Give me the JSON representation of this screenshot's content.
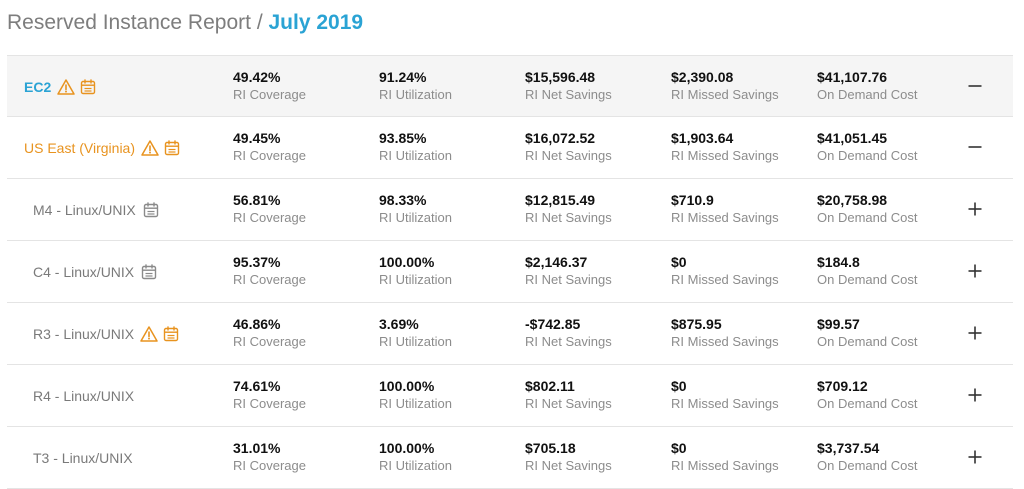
{
  "header": {
    "title": "Reserved Instance Report",
    "separator": "/",
    "period": "July 2019"
  },
  "colors": {
    "accent_blue": "#2aa3d4",
    "warning_orange": "#e8931f",
    "muted_gray": "#7a7a7a"
  },
  "metric_labels": {
    "coverage": "RI Coverage",
    "utilization": "RI Utilization",
    "net_savings": "RI Net Savings",
    "missed_savings": "RI Missed Savings",
    "on_demand_cost": "On Demand Cost"
  },
  "rows": [
    {
      "name": "EC2",
      "level": 0,
      "warning_icon": true,
      "calendar_icon": true,
      "coverage": "49.42%",
      "utilization": "91.24%",
      "net_savings": "$15,596.48",
      "missed_savings": "$2,390.08",
      "on_demand_cost": "$41,107.76",
      "toggle": "collapse"
    },
    {
      "name": "US East (Virginia)",
      "level": 1,
      "warning_icon": true,
      "calendar_icon": true,
      "coverage": "49.45%",
      "utilization": "93.85%",
      "net_savings": "$16,072.52",
      "missed_savings": "$1,903.64",
      "on_demand_cost": "$41,051.45",
      "toggle": "collapse"
    },
    {
      "name": "M4 - Linux/UNIX",
      "level": 2,
      "warning_icon": false,
      "calendar_icon": true,
      "coverage": "56.81%",
      "utilization": "98.33%",
      "net_savings": "$12,815.49",
      "missed_savings": "$710.9",
      "on_demand_cost": "$20,758.98",
      "toggle": "expand"
    },
    {
      "name": "C4 - Linux/UNIX",
      "level": 2,
      "warning_icon": false,
      "calendar_icon": true,
      "coverage": "95.37%",
      "utilization": "100.00%",
      "net_savings": "$2,146.37",
      "missed_savings": "$0",
      "on_demand_cost": "$184.8",
      "toggle": "expand"
    },
    {
      "name": "R3 - Linux/UNIX",
      "level": 2,
      "warning_icon": true,
      "calendar_icon": true,
      "coverage": "46.86%",
      "utilization": "3.69%",
      "net_savings": "-$742.85",
      "missed_savings": "$875.95",
      "on_demand_cost": "$99.57",
      "toggle": "expand"
    },
    {
      "name": "R4 - Linux/UNIX",
      "level": 2,
      "warning_icon": false,
      "calendar_icon": false,
      "coverage": "74.61%",
      "utilization": "100.00%",
      "net_savings": "$802.11",
      "missed_savings": "$0",
      "on_demand_cost": "$709.12",
      "toggle": "expand"
    },
    {
      "name": "T3 - Linux/UNIX",
      "level": 2,
      "warning_icon": false,
      "calendar_icon": false,
      "coverage": "31.01%",
      "utilization": "100.00%",
      "net_savings": "$705.18",
      "missed_savings": "$0",
      "on_demand_cost": "$3,737.54",
      "toggle": "expand"
    }
  ]
}
